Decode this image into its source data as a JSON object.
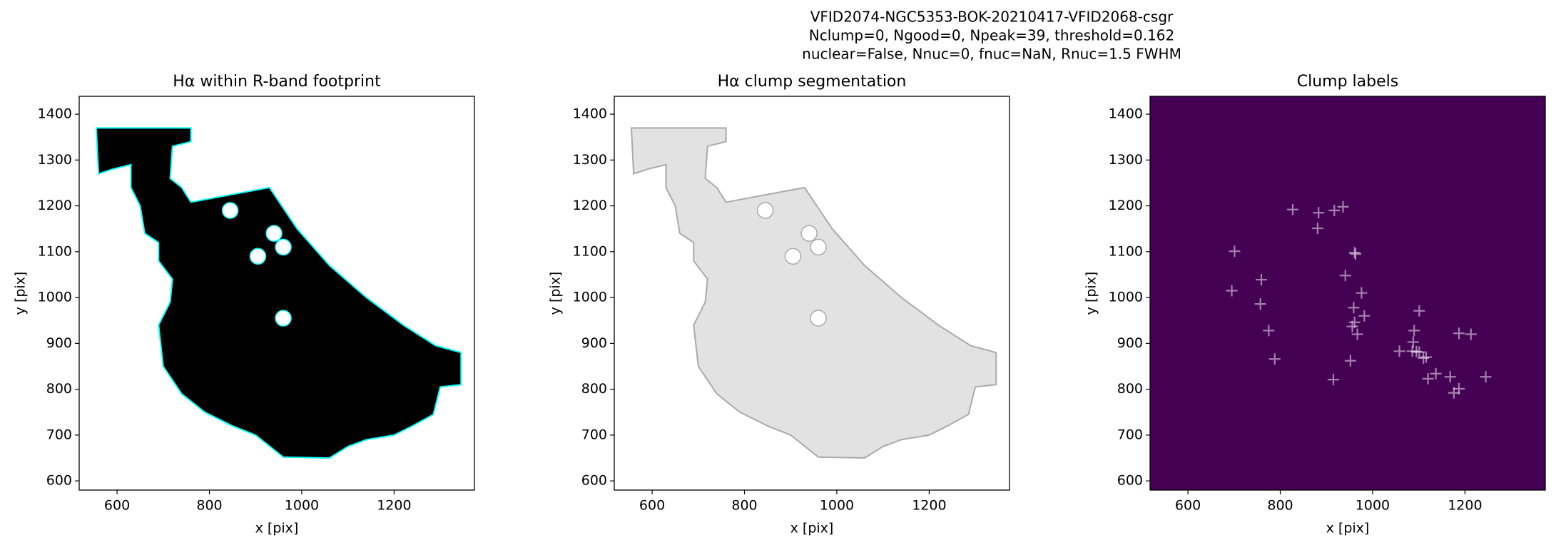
{
  "suptitle": [
    "VFID2074-NGC5353-BOK-20210417-VFID2068-csgr",
    "Nclump=0, Ngood=0, Npeak=39, threshold=0.162",
    "nuclear=False, Nnuc=0, fnuc=NaN, Rnuc=1.5 FWHM"
  ],
  "chart_data": [
    {
      "type": "image",
      "title": "Hα within R-band footprint",
      "xlabel": "x [pix]",
      "ylabel": "y [pix]",
      "xlim": [
        518,
        1374
      ],
      "ylim": [
        580,
        1439
      ],
      "xticks": [
        600,
        800,
        1000,
        1200
      ],
      "yticks": [
        600,
        700,
        800,
        900,
        1000,
        1100,
        1200,
        1300,
        1400
      ],
      "color": "#000000",
      "edge_color": "#00ffff"
    },
    {
      "type": "image",
      "title": "Hα clump segmentation",
      "xlabel": "x [pix]",
      "ylabel": "y [pix]",
      "xlim": [
        518,
        1374
      ],
      "ylim": [
        580,
        1439
      ],
      "xticks": [
        600,
        800,
        1000,
        1200
      ],
      "yticks": [
        600,
        700,
        800,
        900,
        1000,
        1100,
        1200,
        1300,
        1400
      ],
      "color": "#e2e2e2",
      "edge_color": "#aaaaaa"
    },
    {
      "type": "scatter",
      "title": "Clump labels",
      "xlabel": "x [pix]",
      "ylabel": "y [pix]",
      "xlim": [
        518,
        1374
      ],
      "ylim": [
        580,
        1439
      ],
      "xticks": [
        600,
        800,
        1000,
        1200
      ],
      "yticks": [
        600,
        700,
        800,
        900,
        1000,
        1100,
        1200,
        1300,
        1400
      ],
      "background": "#440154",
      "marker_color": "rgba(255,255,255,0.5)",
      "x": [
        827,
        883,
        917,
        936,
        881,
        701,
        961,
        963,
        759,
        941,
        695,
        976,
        757,
        959,
        982,
        1101,
        961,
        956,
        967,
        775,
        1090,
        1088,
        1058,
        1086,
        1101,
        1116,
        788,
        952,
        1187,
        1213,
        1120,
        1137,
        1168,
        1176,
        1187,
        1245,
        915,
        1095,
        1110
      ],
      "y": [
        1192,
        1185,
        1190,
        1198,
        1151,
        1101,
        1098,
        1095,
        1039,
        1048,
        1015,
        1010,
        986,
        978,
        960,
        971,
        946,
        937,
        920,
        928,
        928,
        903,
        883,
        883,
        881,
        870,
        866,
        862,
        922,
        920,
        823,
        834,
        827,
        792,
        801,
        827,
        821,
        882,
        868
      ]
    }
  ]
}
